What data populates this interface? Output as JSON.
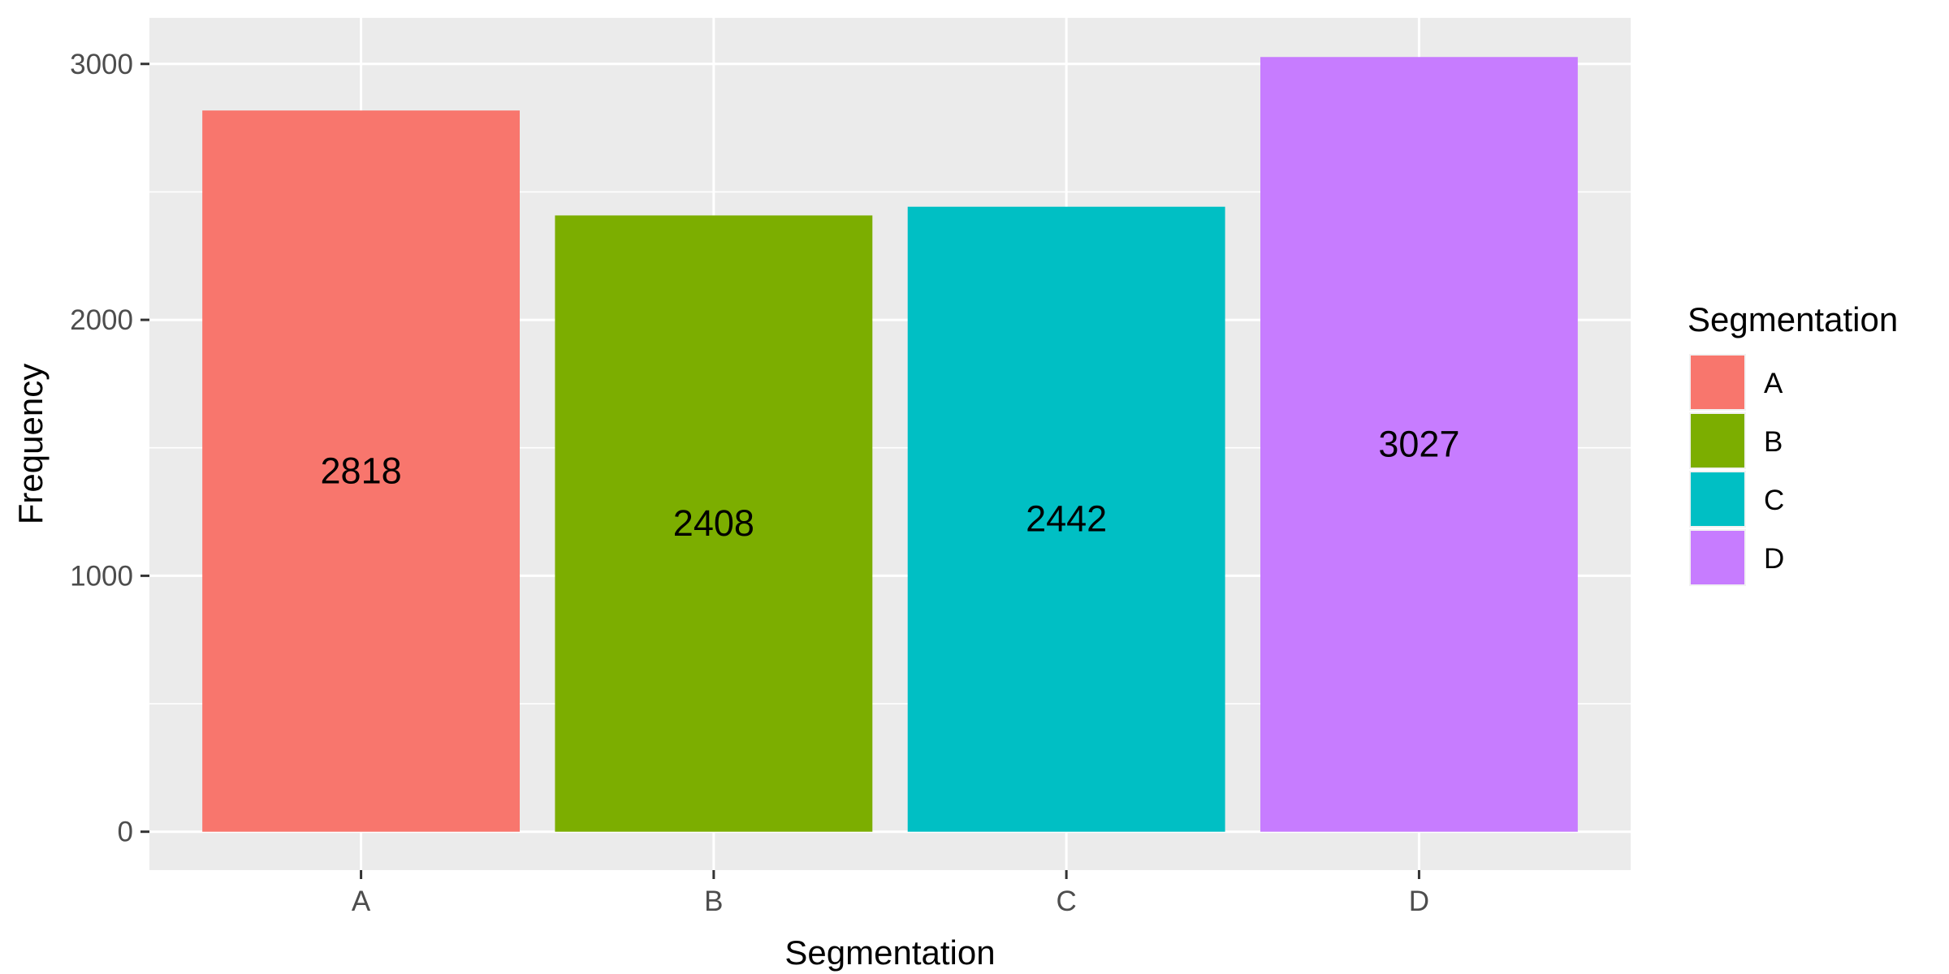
{
  "chart_data": {
    "type": "bar",
    "categories": [
      "A",
      "B",
      "C",
      "D"
    ],
    "values": [
      2818,
      2408,
      2442,
      3027
    ],
    "data_labels": [
      "2818",
      "2408",
      "2442",
      "3027"
    ],
    "colors": [
      "#F8766D",
      "#7CAE00",
      "#00BFC4",
      "#C77CFF"
    ],
    "xlabel": "Segmentation",
    "ylabel": "Frequency",
    "ylim": [
      -150,
      3180
    ],
    "yticks": [
      0,
      1000,
      2000,
      3000
    ],
    "ytick_labels": [
      "0",
      "1000",
      "2000",
      "3000"
    ],
    "y_minor_ticks": [
      500,
      1500,
      2500
    ],
    "grid": true,
    "panel_background": "#EBEBEB",
    "grid_color": "#FFFFFF",
    "legend": {
      "title": "Segmentation",
      "position": "right",
      "entries": [
        "A",
        "B",
        "C",
        "D"
      ]
    }
  }
}
